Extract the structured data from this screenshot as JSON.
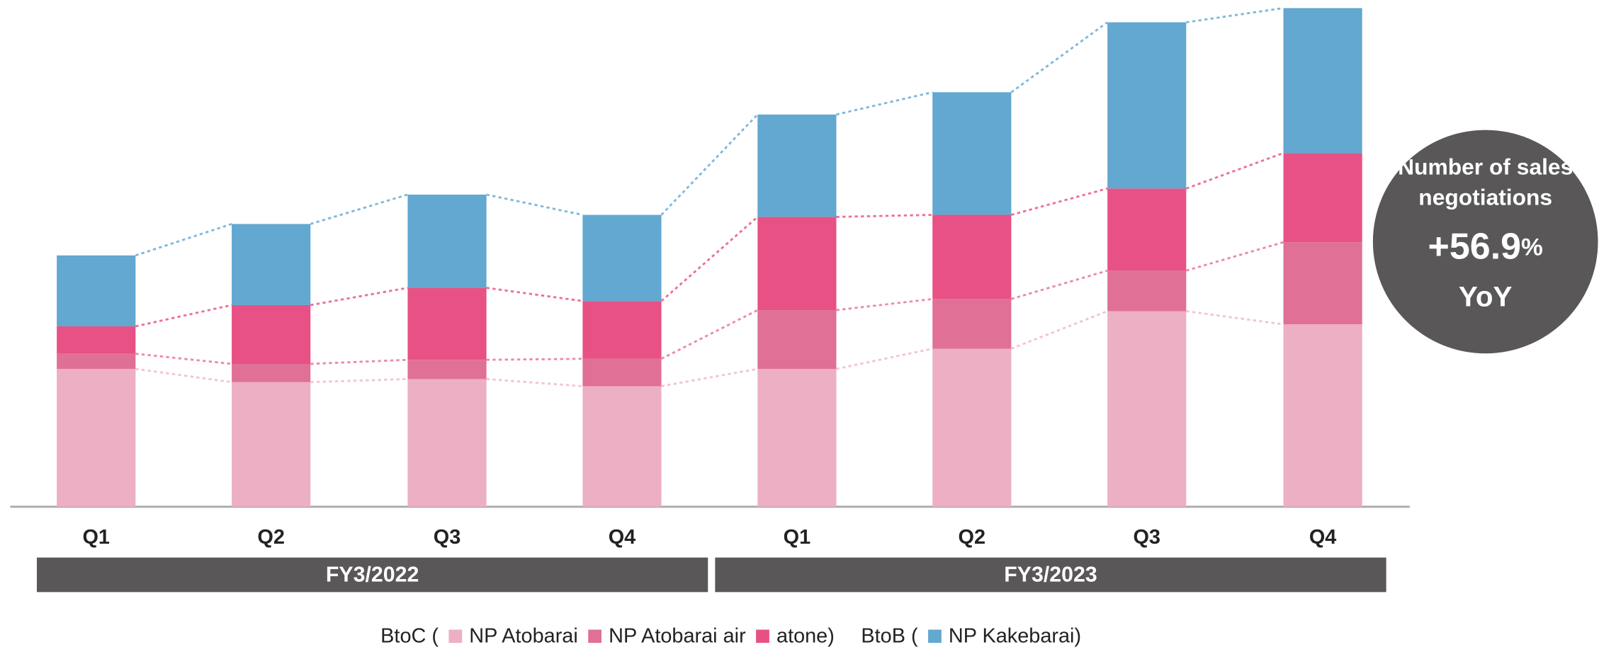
{
  "chart_data": {
    "type": "stacked_bar",
    "categories": [
      "Q1",
      "Q2",
      "Q3",
      "Q4",
      "Q1",
      "Q2",
      "Q3",
      "Q4"
    ],
    "groups": [
      "FY3/2022",
      "FY3/2023"
    ],
    "series": [
      {
        "name": "NP Atobarai",
        "color": "#ecafc4",
        "values": [
          136,
          123,
          126,
          119,
          136,
          156,
          193,
          180
        ]
      },
      {
        "name": "NP Atobarai air",
        "color": "#e07096",
        "values": [
          15,
          18,
          19,
          27,
          58,
          49,
          40,
          81
        ]
      },
      {
        "name": "atone",
        "color": "#e85185",
        "values": [
          27,
          58,
          71,
          57,
          92,
          83,
          81,
          88
        ]
      },
      {
        "name": "NP Kakebarai",
        "color": "#62a8d0",
        "values": [
          70,
          80,
          92,
          85,
          101,
          121,
          164,
          143
        ]
      }
    ],
    "ylim": [
      0,
      500
    ],
    "legend_text": {
      "btoc_open": "BtoC (",
      "btob_open": "BtoB (",
      "close": ")"
    },
    "annotation": {
      "lines": [
        "Number of sales",
        "negotiations"
      ],
      "growth": "+56.9",
      "growth_unit": "%",
      "suffix": "YoY"
    }
  }
}
